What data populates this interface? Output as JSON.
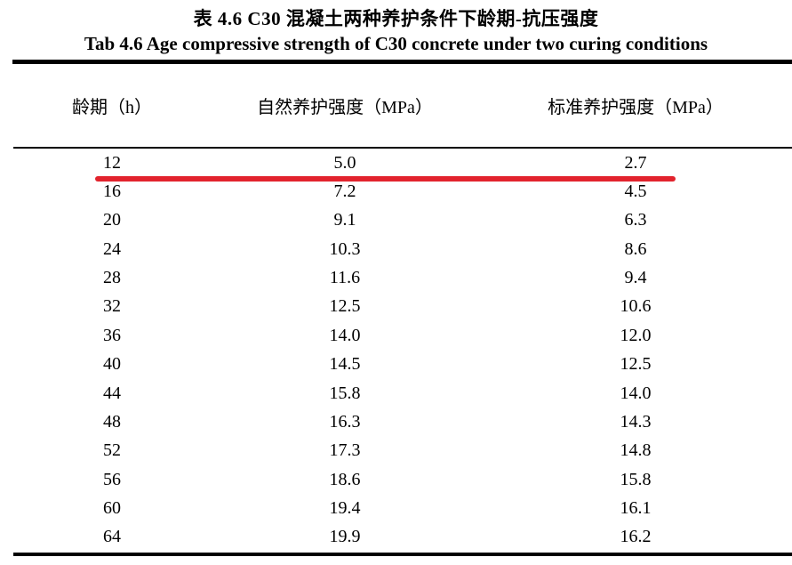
{
  "titles": {
    "zh": "表 4.6 C30 混凝土两种养护条件下龄期-抗压强度",
    "en": "Tab 4.6 Age compressive strength of C30 concrete under two curing conditions"
  },
  "table": {
    "headers": [
      "龄期（h）",
      "自然养护强度（MPa）",
      "标准养护强度（MPa）"
    ],
    "rows": [
      [
        "12",
        "5.0",
        "2.7"
      ],
      [
        "16",
        "7.2",
        "4.5"
      ],
      [
        "20",
        "9.1",
        "6.3"
      ],
      [
        "24",
        "10.3",
        "8.6"
      ],
      [
        "28",
        "11.6",
        "9.4"
      ],
      [
        "32",
        "12.5",
        "10.6"
      ],
      [
        "36",
        "14.0",
        "12.0"
      ],
      [
        "40",
        "14.5",
        "12.5"
      ],
      [
        "44",
        "15.8",
        "14.0"
      ],
      [
        "48",
        "16.3",
        "14.3"
      ],
      [
        "52",
        "17.3",
        "14.8"
      ],
      [
        "56",
        "18.6",
        "15.8"
      ],
      [
        "60",
        "19.4",
        "16.1"
      ],
      [
        "64",
        "19.9",
        "16.2"
      ]
    ]
  },
  "annotation": {
    "type": "red-underline",
    "marked_row_age": "12"
  },
  "colors": {
    "annotation_red": "#e2232d",
    "rule_black": "#000000",
    "background": "#ffffff"
  }
}
